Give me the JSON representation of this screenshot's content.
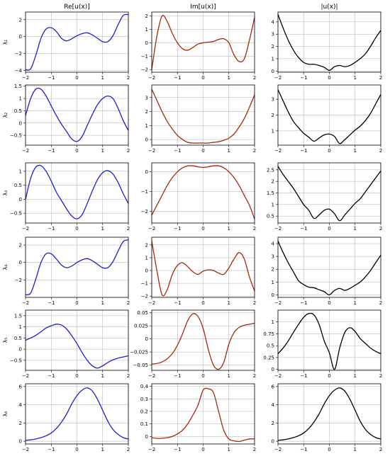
{
  "figure": {
    "column_titles": [
      "Re[u(x)]",
      "Im[u(x)]",
      "|u(x)|"
    ],
    "row_labels": [
      "λ₁",
      "λ₂",
      "λ₃",
      "λ₄",
      "λ₅",
      "λ₆"
    ]
  },
  "chart_data": {
    "type": "line",
    "layout": "6 rows x 3 columns of line subplots",
    "grid": true,
    "x_ticks": [
      "−2",
      "−1",
      "0",
      "1",
      "2"
    ],
    "xlim": [
      -2,
      2
    ],
    "colors": {
      "re": "#1f1fcc",
      "im": "#a52a0a",
      "abs": "#000000"
    },
    "panels": [
      {
        "row": 1,
        "col": "Re",
        "ylim": [
          -4.2,
          2.9
        ],
        "yticks": [
          -4,
          -2,
          0,
          2
        ],
        "x": [
          -2,
          -1.8,
          -1.6,
          -1.4,
          -1.2,
          -1,
          -0.8,
          -0.6,
          -0.4,
          -0.2,
          0,
          0.2,
          0.4,
          0.6,
          0.8,
          1,
          1.2,
          1.4,
          1.6,
          1.8,
          2
        ],
        "y": [
          -3.9,
          -3.8,
          -2.2,
          -0.2,
          0.9,
          1.05,
          0.6,
          -0.2,
          -0.5,
          -0.25,
          0.1,
          0.35,
          0.45,
          0.2,
          -0.2,
          -0.6,
          -0.6,
          0.1,
          1.4,
          2.5,
          2.6
        ]
      },
      {
        "row": 1,
        "col": "Im",
        "ylim": [
          -2.2,
          2.3
        ],
        "yticks": [
          -2,
          -1,
          0,
          1,
          2
        ],
        "x": [
          -2,
          -1.8,
          -1.6,
          -1.4,
          -1.2,
          -1,
          -0.8,
          -0.6,
          -0.4,
          -0.2,
          0,
          0.2,
          0.4,
          0.6,
          0.8,
          1,
          1.2,
          1.4,
          1.6,
          1.8,
          2
        ],
        "y": [
          -2.0,
          0.5,
          2.0,
          1.6,
          0.7,
          0.0,
          -0.45,
          -0.55,
          -0.35,
          -0.1,
          0.0,
          0.05,
          0.1,
          0.25,
          0.3,
          0.0,
          -0.9,
          -1.4,
          -1.2,
          0.2,
          1.9
        ]
      },
      {
        "row": 1,
        "col": "Abs",
        "ylim": [
          -0.1,
          4.8
        ],
        "yticks": [
          0,
          1,
          2,
          3,
          4
        ],
        "x": [
          -2,
          -1.8,
          -1.6,
          -1.4,
          -1.2,
          -1,
          -0.8,
          -0.6,
          -0.4,
          -0.2,
          0,
          0.2,
          0.4,
          0.6,
          0.8,
          1,
          1.2,
          1.4,
          1.6,
          1.8,
          2
        ],
        "y": [
          4.6,
          3.5,
          2.5,
          1.7,
          1.1,
          0.7,
          0.55,
          0.55,
          0.45,
          0.3,
          0.05,
          0.35,
          0.45,
          0.35,
          0.45,
          0.7,
          1.0,
          1.4,
          2.0,
          2.7,
          3.3
        ]
      },
      {
        "row": 2,
        "col": "Re",
        "ylim": [
          -0.9,
          1.55
        ],
        "yticks": [
          -0.5,
          0.0,
          0.5,
          1.0,
          1.5
        ],
        "x": [
          -2,
          -1.8,
          -1.6,
          -1.4,
          -1.2,
          -1,
          -0.8,
          -0.6,
          -0.4,
          -0.2,
          0,
          0.2,
          0.4,
          0.6,
          0.8,
          1,
          1.2,
          1.4,
          1.6,
          1.8,
          2
        ],
        "y": [
          0.3,
          1.0,
          1.38,
          1.38,
          1.1,
          0.7,
          0.3,
          -0.05,
          -0.35,
          -0.65,
          -0.75,
          -0.55,
          -0.1,
          0.35,
          0.75,
          1.0,
          1.1,
          1.0,
          0.6,
          0.1,
          -0.3
        ]
      },
      {
        "row": 2,
        "col": "Im",
        "ylim": [
          -0.4,
          3.9
        ],
        "yticks": [
          0,
          1,
          2,
          3
        ],
        "x": [
          -2,
          -1.8,
          -1.6,
          -1.4,
          -1.2,
          -1,
          -0.8,
          -0.6,
          -0.4,
          -0.2,
          0,
          0.2,
          0.4,
          0.6,
          0.8,
          1,
          1.2,
          1.4,
          1.6,
          1.8,
          2
        ],
        "y": [
          3.6,
          2.8,
          2.0,
          1.3,
          0.75,
          0.3,
          0.0,
          -0.2,
          -0.25,
          -0.25,
          -0.25,
          -0.25,
          -0.2,
          -0.15,
          -0.05,
          0.1,
          0.4,
          0.9,
          1.5,
          2.3,
          3.2
        ]
      },
      {
        "row": 2,
        "col": "Abs",
        "ylim": [
          0.1,
          3.9
        ],
        "yticks": [
          1,
          2,
          3
        ],
        "x": [
          -2,
          -1.8,
          -1.6,
          -1.4,
          -1.2,
          -1,
          -0.8,
          -0.6,
          -0.4,
          -0.2,
          0,
          0.2,
          0.4,
          0.6,
          0.8,
          1,
          1.2,
          1.4,
          1.6,
          1.8,
          2
        ],
        "y": [
          3.6,
          2.9,
          2.2,
          1.6,
          1.2,
          0.85,
          0.6,
          0.35,
          0.55,
          0.75,
          0.8,
          0.65,
          0.2,
          0.45,
          0.75,
          1.05,
          1.3,
          1.65,
          2.1,
          2.7,
          3.3
        ]
      },
      {
        "row": 3,
        "col": "Re",
        "ylim": [
          -0.85,
          1.3
        ],
        "yticks": [
          -0.5,
          0.0,
          0.5,
          1.0
        ],
        "x": [
          -2,
          -1.8,
          -1.6,
          -1.4,
          -1.2,
          -1,
          -0.8,
          -0.6,
          -0.4,
          -0.2,
          0,
          0.2,
          0.4,
          0.6,
          0.8,
          1,
          1.2,
          1.4,
          1.6,
          1.8,
          2
        ],
        "y": [
          0.0,
          0.75,
          1.15,
          1.2,
          1.0,
          0.65,
          0.25,
          -0.05,
          -0.35,
          -0.6,
          -0.7,
          -0.55,
          -0.15,
          0.3,
          0.7,
          0.95,
          1.02,
          0.9,
          0.6,
          0.2,
          -0.15
        ]
      },
      {
        "row": 3,
        "col": "Im",
        "ylim": [
          -2.6,
          0.45
        ],
        "yticks": [
          -2,
          -1,
          0
        ],
        "x": [
          -2,
          -1.8,
          -1.6,
          -1.4,
          -1.2,
          -1,
          -0.8,
          -0.6,
          -0.4,
          -0.2,
          0,
          0.2,
          0.4,
          0.6,
          0.8,
          1,
          1.2,
          1.4,
          1.6,
          1.8,
          2
        ],
        "y": [
          -2.2,
          -1.7,
          -1.2,
          -0.7,
          -0.3,
          0.0,
          0.2,
          0.3,
          0.3,
          0.25,
          0.22,
          0.25,
          0.3,
          0.3,
          0.2,
          0.0,
          -0.3,
          -0.7,
          -1.2,
          -1.7,
          -2.4
        ]
      },
      {
        "row": 3,
        "col": "Abs",
        "ylim": [
          0.2,
          2.8
        ],
        "yticks": [
          0.5,
          1.0,
          1.5,
          2.0,
          2.5
        ],
        "x": [
          -2,
          -1.8,
          -1.6,
          -1.4,
          -1.2,
          -1,
          -0.8,
          -0.6,
          -0.4,
          -0.2,
          0,
          0.2,
          0.4,
          0.6,
          0.8,
          1,
          1.2,
          1.4,
          1.6,
          1.8,
          2
        ],
        "y": [
          2.65,
          2.3,
          2.0,
          1.7,
          1.35,
          1.0,
          0.75,
          0.4,
          0.55,
          0.75,
          0.8,
          0.6,
          0.3,
          0.55,
          0.8,
          1.05,
          1.25,
          1.55,
          1.85,
          2.15,
          2.45
        ]
      },
      {
        "row": 4,
        "col": "Re",
        "ylim": [
          -4.0,
          2.9
        ],
        "yticks": [
          -2,
          0,
          2
        ],
        "x": [
          -2,
          -1.8,
          -1.6,
          -1.4,
          -1.2,
          -1,
          -0.8,
          -0.6,
          -0.4,
          -0.2,
          0,
          0.2,
          0.4,
          0.6,
          0.8,
          1,
          1.2,
          1.4,
          1.6,
          1.8,
          2
        ],
        "y": [
          -3.7,
          -3.5,
          -1.9,
          0.0,
          1.0,
          1.0,
          0.4,
          -0.3,
          -0.6,
          -0.4,
          0.0,
          0.3,
          0.45,
          0.2,
          -0.2,
          -0.6,
          -0.6,
          0.1,
          1.3,
          2.4,
          2.6
        ]
      },
      {
        "row": 4,
        "col": "Im",
        "ylim": [
          -2.1,
          2.6
        ],
        "yticks": [
          -2,
          -1,
          0,
          1,
          2
        ],
        "x": [
          -2,
          -1.8,
          -1.6,
          -1.4,
          -1.2,
          -1,
          -0.8,
          -0.6,
          -0.4,
          -0.2,
          0,
          0.2,
          0.4,
          0.6,
          0.8,
          1,
          1.2,
          1.4,
          1.6,
          1.8,
          2
        ],
        "y": [
          2.3,
          0.0,
          -1.9,
          -1.5,
          -0.3,
          0.4,
          0.6,
          0.3,
          -0.1,
          -0.3,
          -0.05,
          0.05,
          0.0,
          -0.2,
          -0.3,
          0.2,
          0.9,
          1.4,
          0.9,
          -0.5,
          -1.6
        ]
      },
      {
        "row": 4,
        "col": "Abs",
        "ylim": [
          -0.2,
          4.5
        ],
        "yticks": [
          0,
          1,
          2,
          3,
          4
        ],
        "x": [
          -2,
          -1.8,
          -1.6,
          -1.4,
          -1.2,
          -1,
          -0.8,
          -0.6,
          -0.4,
          -0.2,
          0,
          0.2,
          0.4,
          0.6,
          0.8,
          1,
          1.2,
          1.4,
          1.6,
          1.8,
          2
        ],
        "y": [
          4.2,
          3.3,
          2.5,
          1.8,
          1.1,
          0.8,
          0.6,
          0.55,
          0.4,
          0.25,
          0.0,
          0.35,
          0.5,
          0.35,
          0.5,
          0.75,
          1.0,
          1.4,
          1.9,
          2.5,
          3.1
        ]
      },
      {
        "row": 5,
        "col": "Re",
        "ylim": [
          -0.95,
          1.75
        ],
        "yticks": [
          -0.5,
          0.0,
          0.5,
          1.0,
          1.5
        ],
        "x": [
          -2,
          -1.8,
          -1.6,
          -1.4,
          -1.2,
          -1,
          -0.8,
          -0.6,
          -0.4,
          -0.2,
          0,
          0.2,
          0.4,
          0.6,
          0.8,
          1,
          1.2,
          1.4,
          1.6,
          1.8,
          2
        ],
        "y": [
          0.4,
          0.5,
          0.62,
          0.78,
          0.95,
          1.05,
          1.12,
          1.08,
          0.9,
          0.6,
          0.25,
          -0.15,
          -0.5,
          -0.75,
          -0.85,
          -0.75,
          -0.6,
          -0.48,
          -0.4,
          -0.35,
          -0.3
        ]
      },
      {
        "row": 5,
        "col": "Im",
        "ylim": [
          -0.06,
          0.055
        ],
        "yticks": [
          -0.05,
          -0.025,
          0.0,
          0.025,
          0.05
        ],
        "x": [
          -2,
          -1.8,
          -1.6,
          -1.4,
          -1.2,
          -1,
          -0.8,
          -0.6,
          -0.4,
          -0.2,
          0,
          0.2,
          0.4,
          0.6,
          0.8,
          1,
          1.2,
          1.4,
          1.6,
          1.8,
          2
        ],
        "y": [
          -0.048,
          -0.047,
          -0.044,
          -0.038,
          -0.028,
          -0.012,
          0.01,
          0.035,
          0.048,
          0.043,
          0.02,
          -0.02,
          -0.05,
          -0.058,
          -0.045,
          -0.01,
          0.012,
          0.022,
          0.026,
          0.028,
          0.03
        ]
      },
      {
        "row": 5,
        "col": "Abs",
        "ylim": [
          -0.02,
          1.25
        ],
        "yticks": [
          0.0,
          0.25,
          0.5,
          0.75,
          1.0
        ],
        "x": [
          -2,
          -1.8,
          -1.6,
          -1.4,
          -1.2,
          -1,
          -0.8,
          -0.6,
          -0.4,
          -0.2,
          0,
          0.2,
          0.4,
          0.6,
          0.8,
          1,
          1.2,
          1.4,
          1.6,
          1.8,
          2
        ],
        "y": [
          0.33,
          0.45,
          0.6,
          0.78,
          0.95,
          1.1,
          1.18,
          1.15,
          0.95,
          0.6,
          0.35,
          0.0,
          0.45,
          0.78,
          0.88,
          0.8,
          0.65,
          0.55,
          0.45,
          0.38,
          0.33
        ]
      },
      {
        "row": 6,
        "col": "Re",
        "ylim": [
          -0.3,
          6.3
        ],
        "yticks": [
          0,
          2,
          4,
          6
        ],
        "x": [
          -2,
          -1.8,
          -1.6,
          -1.4,
          -1.2,
          -1,
          -0.8,
          -0.6,
          -0.4,
          -0.2,
          0,
          0.2,
          0.4,
          0.6,
          0.8,
          1,
          1.2,
          1.4,
          1.6,
          1.8,
          2
        ],
        "y": [
          0.1,
          0.15,
          0.25,
          0.4,
          0.6,
          0.9,
          1.4,
          2.1,
          3.0,
          4.1,
          5.0,
          5.6,
          5.85,
          5.5,
          4.6,
          3.4,
          2.2,
          1.3,
          0.75,
          0.4,
          0.25
        ]
      },
      {
        "row": 6,
        "col": "Im",
        "ylim": [
          -0.06,
          0.42
        ],
        "yticks": [
          0.0,
          0.1,
          0.2,
          0.3,
          0.4
        ],
        "x": [
          -2,
          -1.8,
          -1.6,
          -1.4,
          -1.2,
          -1,
          -0.8,
          -0.6,
          -0.4,
          -0.2,
          0,
          0.2,
          0.4,
          0.6,
          0.8,
          1,
          1.2,
          1.4,
          1.6,
          1.8,
          2
        ],
        "y": [
          -0.01,
          -0.015,
          -0.015,
          -0.01,
          0.0,
          0.02,
          0.05,
          0.1,
          0.17,
          0.25,
          0.37,
          0.38,
          0.35,
          0.2,
          0.05,
          -0.02,
          -0.035,
          -0.04,
          -0.03,
          -0.02,
          -0.02
        ]
      },
      {
        "row": 6,
        "col": "Abs",
        "ylim": [
          -0.3,
          6.3
        ],
        "yticks": [
          0,
          2,
          4,
          6
        ],
        "x": [
          -2,
          -1.8,
          -1.6,
          -1.4,
          -1.2,
          -1,
          -0.8,
          -0.6,
          -0.4,
          -0.2,
          0,
          0.2,
          0.4,
          0.6,
          0.8,
          1,
          1.2,
          1.4,
          1.6,
          1.8,
          2
        ],
        "y": [
          0.1,
          0.15,
          0.25,
          0.4,
          0.6,
          0.9,
          1.4,
          2.1,
          3.0,
          4.1,
          5.0,
          5.6,
          5.85,
          5.5,
          4.6,
          3.4,
          2.2,
          1.3,
          0.75,
          0.4,
          0.25
        ]
      }
    ]
  }
}
